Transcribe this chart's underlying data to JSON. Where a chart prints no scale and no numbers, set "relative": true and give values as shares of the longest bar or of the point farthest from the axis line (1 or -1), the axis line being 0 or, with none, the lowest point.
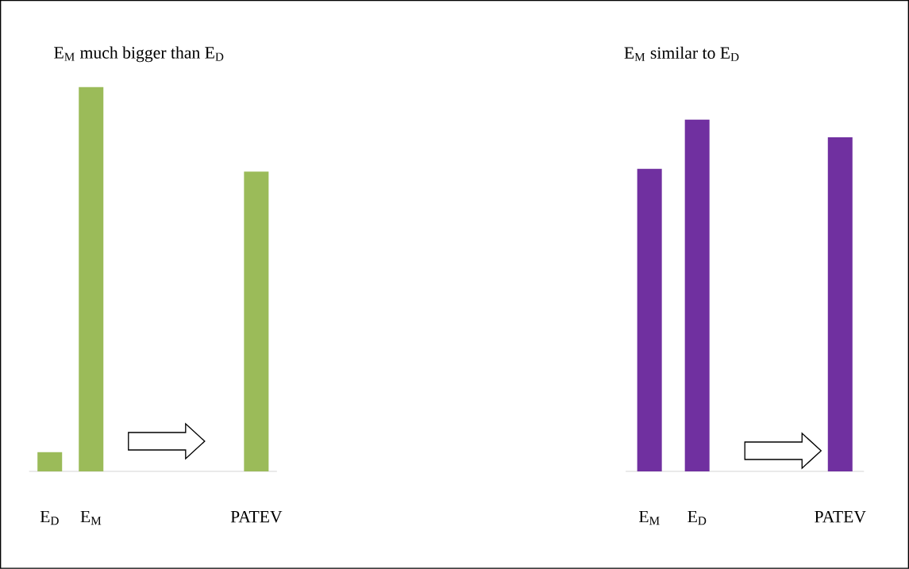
{
  "chart_data": [
    {
      "type": "bar",
      "title": "E$_{M}$ much bigger than E$_{D}$",
      "relative": true,
      "categories": [
        "E$_{D}$",
        "E$_{M}$",
        null,
        null,
        null,
        "PATEV"
      ],
      "values": [
        0.05,
        1,
        null,
        null,
        null,
        0.78
      ],
      "color": "#9bbb59"
    },
    {
      "type": "bar",
      "title": "E$_{M}$ similar to E$_{D}$",
      "relative": true,
      "categories": [
        "E$_{M}$",
        "E$_{D}$",
        null,
        null,
        "PATEV"
      ],
      "values": [
        0.86,
        1,
        null,
        null,
        0.95
      ],
      "color": "#7030a0"
    }
  ]
}
